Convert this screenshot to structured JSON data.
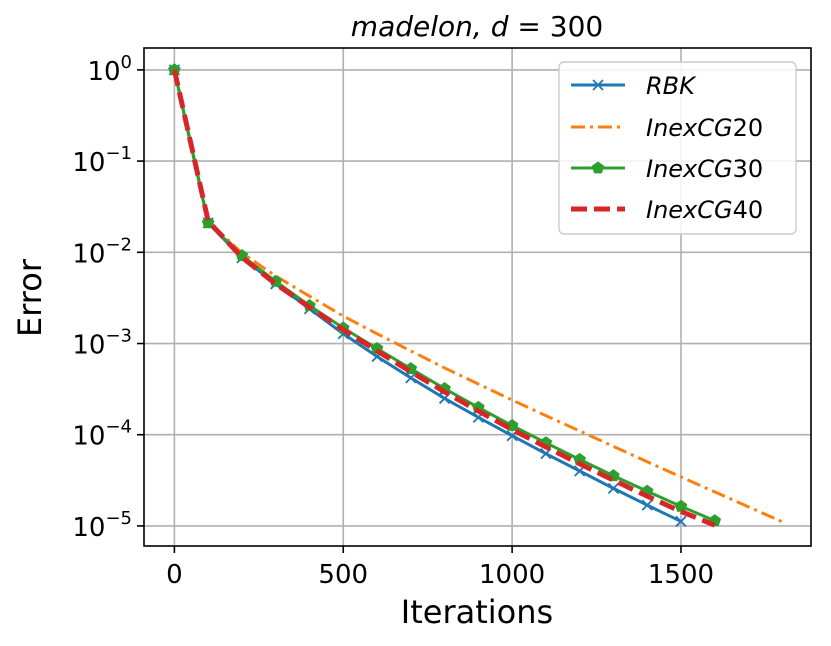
{
  "chart_data": {
    "type": "line",
    "title": "madelon, d = 300",
    "title_parts": {
      "name": "madelon",
      "param": "d",
      "eq": " = ",
      "value": "300"
    },
    "xlabel": "Iterations",
    "ylabel": "Error",
    "xlim": [
      -90,
      1885
    ],
    "ylim_log10": [
      -5.22,
      0.24
    ],
    "yscale": "log",
    "grid": true,
    "legend_position": "top-right",
    "x_ticks": [
      {
        "value": 0,
        "label": "0"
      },
      {
        "value": 500,
        "label": "500"
      },
      {
        "value": 1000,
        "label": "1000"
      },
      {
        "value": 1500,
        "label": "1500"
      }
    ],
    "y_ticks": [
      {
        "exp": 0,
        "base": "10",
        "sup": "0"
      },
      {
        "exp": -1,
        "base": "10",
        "sup": "−1"
      },
      {
        "exp": -2,
        "base": "10",
        "sup": "−2"
      },
      {
        "exp": -3,
        "base": "10",
        "sup": "−3"
      },
      {
        "exp": -4,
        "base": "10",
        "sup": "−4"
      },
      {
        "exp": -5,
        "base": "10",
        "sup": "−5"
      }
    ],
    "series": [
      {
        "name": "RBK",
        "legend_base": "RBK",
        "legend_num": "",
        "color": "#1f77b4",
        "style": "solid",
        "marker": "x",
        "x": [
          0,
          100,
          200,
          300,
          400,
          500,
          600,
          700,
          800,
          900,
          1000,
          1100,
          1200,
          1300,
          1400,
          1500
        ],
        "y": [
          1.0,
          0.021,
          0.0087,
          0.0045,
          0.0024,
          0.00128,
          0.00072,
          0.00042,
          0.00025,
          0.000155,
          9.75e-05,
          6.2e-05,
          4e-05,
          2.58e-05,
          1.69e-05,
          1.12e-05
        ]
      },
      {
        "name": "InexCG20",
        "legend_base": "InexCG",
        "legend_num": "20",
        "color": "#ff7f0e",
        "style": "dashdot",
        "marker": "none",
        "x": [
          0,
          100,
          200,
          300,
          400,
          500,
          600,
          700,
          800,
          900,
          1000,
          1100,
          1200,
          1300,
          1400,
          1500,
          1600,
          1700,
          1800
        ],
        "y": [
          1.0,
          0.022,
          0.0098,
          0.0055,
          0.0033,
          0.002,
          0.00128,
          0.00083,
          0.00054,
          0.00036,
          0.00024,
          0.000162,
          0.00011,
          7.45e-05,
          5.05e-05,
          3.45e-05,
          2.36e-05,
          1.62e-05,
          1.11e-05
        ]
      },
      {
        "name": "InexCG30",
        "legend_base": "InexCG",
        "legend_num": "30",
        "color": "#2ca02c",
        "style": "solid",
        "marker": "pentagon",
        "x": [
          0,
          100,
          200,
          300,
          400,
          500,
          600,
          700,
          800,
          900,
          1000,
          1100,
          1200,
          1300,
          1400,
          1500,
          1600
        ],
        "y": [
          1.0,
          0.021,
          0.0092,
          0.0048,
          0.0026,
          0.00148,
          0.00088,
          0.00053,
          0.00032,
          0.000199,
          0.000126,
          8.15e-05,
          5.35e-05,
          3.55e-05,
          2.4e-05,
          1.64e-05,
          1.14e-05
        ]
      },
      {
        "name": "InexCG40",
        "legend_base": "InexCG",
        "legend_num": "40",
        "color": "#d62728",
        "style": "dashed-thick",
        "marker": "none",
        "x": [
          0,
          100,
          200,
          300,
          400,
          500,
          600,
          700,
          800,
          900,
          1000,
          1100,
          1200,
          1300,
          1400,
          1500,
          1600
        ],
        "y": [
          1.0,
          0.022,
          0.0088,
          0.0045,
          0.0025,
          0.00142,
          0.00083,
          0.00049,
          0.000295,
          0.000182,
          0.000114,
          7.35e-05,
          4.8e-05,
          3.18e-05,
          2.12e-05,
          1.44e-05,
          1.02e-05
        ]
      }
    ]
  }
}
